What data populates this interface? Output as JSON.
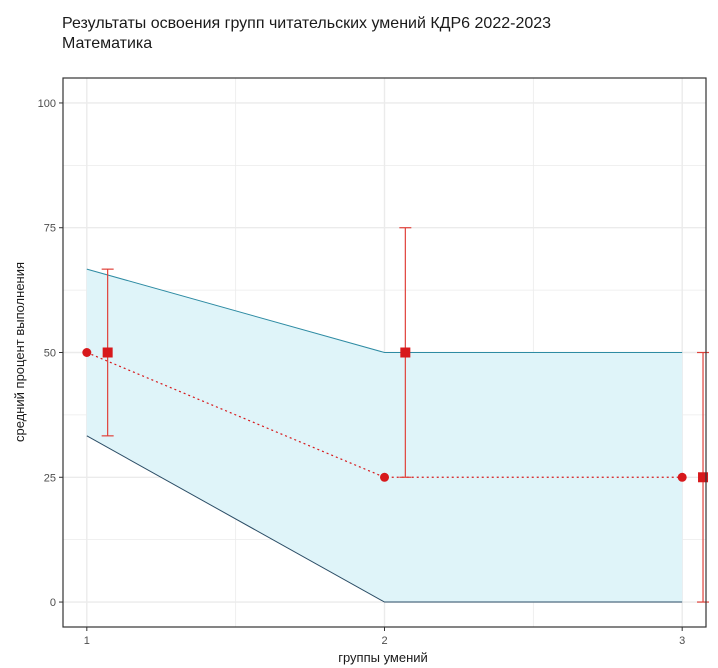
{
  "chart_data": {
    "type": "line",
    "title": "Результаты освоения групп читательских умений КДР6 2022-2023",
    "subtitle": "Математика",
    "xlabel": "группы умений",
    "ylabel": "средний процент выполнения",
    "x": [
      1,
      2,
      3
    ],
    "x_tick_labels": [
      "1",
      "2",
      "3"
    ],
    "xlim": [
      0.92,
      3.08
    ],
    "ylim": [
      -5,
      105
    ],
    "y_ticks": [
      0,
      25,
      50,
      75,
      100
    ],
    "y_tick_labels": [
      "0",
      "25",
      "50",
      "75",
      "100"
    ],
    "grid": true,
    "band": {
      "upper": [
        66.7,
        50,
        50
      ],
      "lower": [
        33.3,
        0,
        0
      ]
    },
    "circle_points": [
      50,
      25,
      25
    ],
    "square_points": {
      "x_offset": 0.07,
      "values": [
        50,
        50,
        25
      ],
      "error_low": [
        33.3,
        25,
        0
      ],
      "error_high": [
        66.7,
        75,
        50
      ]
    },
    "colors": {
      "band_fill": "#dff4f9",
      "band_line": "#2e8ba3",
      "points": "#d7191c",
      "error_bars": "#e0413a",
      "grid": "#ebebeb"
    }
  }
}
